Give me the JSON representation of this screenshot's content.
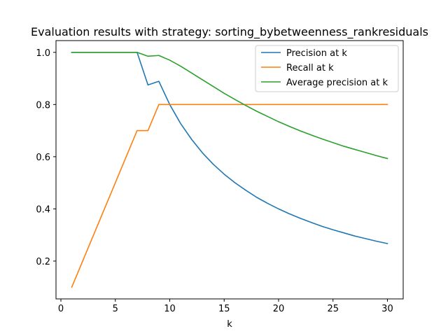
{
  "chart_data": {
    "type": "line",
    "title": "Evaluation results with strategy: sorting_bybetweenness_rankresiduals",
    "xlabel": "k",
    "ylabel": "",
    "xlim": [
      -0.45,
      31.45
    ],
    "ylim": [
      0.055,
      1.045
    ],
    "x_ticks": [
      0,
      5,
      10,
      15,
      20,
      25,
      30
    ],
    "y_ticks": [
      0.2,
      0.4,
      0.6,
      0.8,
      1.0
    ],
    "y_tick_labels": [
      "0.2",
      "0.4",
      "0.6",
      "0.8",
      "1.0"
    ],
    "grid": false,
    "legend_position": "top-right",
    "x": [
      1,
      2,
      3,
      4,
      5,
      6,
      7,
      8,
      9,
      10,
      11,
      12,
      13,
      14,
      15,
      16,
      17,
      18,
      19,
      20,
      21,
      22,
      23,
      24,
      25,
      26,
      27,
      28,
      29,
      30
    ],
    "series": [
      {
        "name": "Precision at k",
        "color": "#1f77b4",
        "values": [
          1.0,
          1.0,
          1.0,
          1.0,
          1.0,
          1.0,
          1.0,
          0.875,
          0.889,
          0.8,
          0.727,
          0.667,
          0.615,
          0.571,
          0.533,
          0.5,
          0.471,
          0.444,
          0.421,
          0.4,
          0.381,
          0.364,
          0.348,
          0.333,
          0.32,
          0.308,
          0.296,
          0.286,
          0.276,
          0.267
        ]
      },
      {
        "name": "Recall at k",
        "color": "#ff7f0e",
        "values": [
          0.1,
          0.2,
          0.3,
          0.4,
          0.5,
          0.6,
          0.7,
          0.7,
          0.8,
          0.8,
          0.8,
          0.8,
          0.8,
          0.8,
          0.8,
          0.8,
          0.8,
          0.8,
          0.8,
          0.8,
          0.8,
          0.8,
          0.8,
          0.8,
          0.8,
          0.8,
          0.8,
          0.8,
          0.8,
          0.8
        ]
      },
      {
        "name": "Average precision at k",
        "color": "#2ca02c",
        "values": [
          1.0,
          1.0,
          1.0,
          1.0,
          1.0,
          1.0,
          1.0,
          0.985,
          0.988,
          0.97,
          0.947,
          0.921,
          0.895,
          0.869,
          0.843,
          0.819,
          0.796,
          0.774,
          0.754,
          0.734,
          0.716,
          0.699,
          0.683,
          0.668,
          0.654,
          0.64,
          0.628,
          0.616,
          0.604,
          0.593
        ]
      }
    ]
  }
}
